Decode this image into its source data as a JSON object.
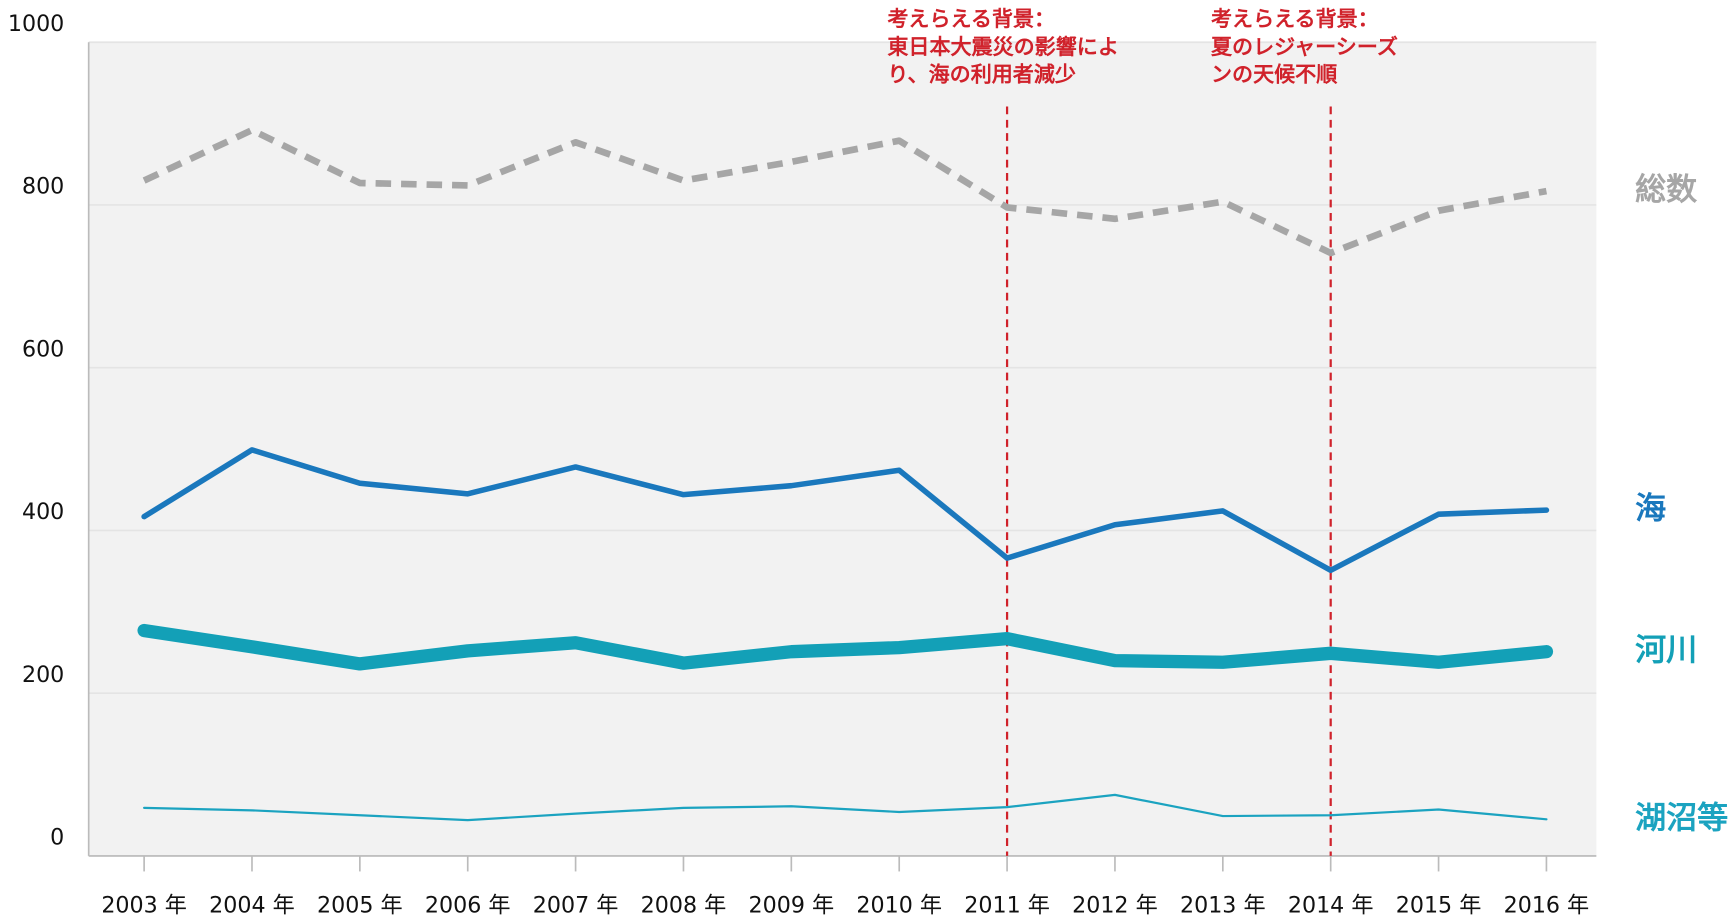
{
  "chart_data": {
    "type": "line",
    "categories": [
      "2003 年",
      "2004 年",
      "2005 年",
      "2006 年",
      "2007 年",
      "2008 年",
      "2009 年",
      "2010 年",
      "2011 年",
      "2012 年",
      "2013 年",
      "2014 年",
      "2015 年",
      "2016 年"
    ],
    "series": [
      {
        "name": "総数",
        "color": "#a6a6a6",
        "dash": true,
        "width": 6,
        "values": [
          830,
          892,
          827,
          824,
          877,
          830,
          853,
          879,
          797,
          783,
          804,
          741,
          793,
          817
        ]
      },
      {
        "name": "海",
        "color": "#1a78bd",
        "dash": false,
        "width": 5,
        "values": [
          417,
          499,
          458,
          445,
          478,
          444,
          455,
          474,
          366,
          407,
          424,
          351,
          420,
          425
        ]
      },
      {
        "name": "河川",
        "color": "#13a0b7",
        "dash": false,
        "width": 12,
        "values": [
          277,
          257,
          236,
          252,
          262,
          237,
          251,
          256,
          267,
          240,
          238,
          249,
          238,
          251
        ]
      },
      {
        "name": "湖沼等",
        "color": "#1ba3c0",
        "dash": false,
        "width": 2,
        "values": [
          59,
          56,
          50,
          44,
          52,
          59,
          61,
          54,
          60,
          75,
          49,
          50,
          57,
          45
        ]
      }
    ],
    "ylim": [
      0,
      1000
    ],
    "yticks": [
      0,
      200,
      400,
      600,
      800,
      1000
    ],
    "grid": true,
    "annotations": [
      {
        "x": "2011 年",
        "lines": [
          "考えらえる背景：",
          "東日本大震災の影響によ",
          "り、海の利用者減少"
        ]
      },
      {
        "x": "2014 年",
        "lines": [
          "考えらえる背景：",
          "夏のレジャーシーズ",
          "ンの天候不順"
        ]
      }
    ]
  }
}
